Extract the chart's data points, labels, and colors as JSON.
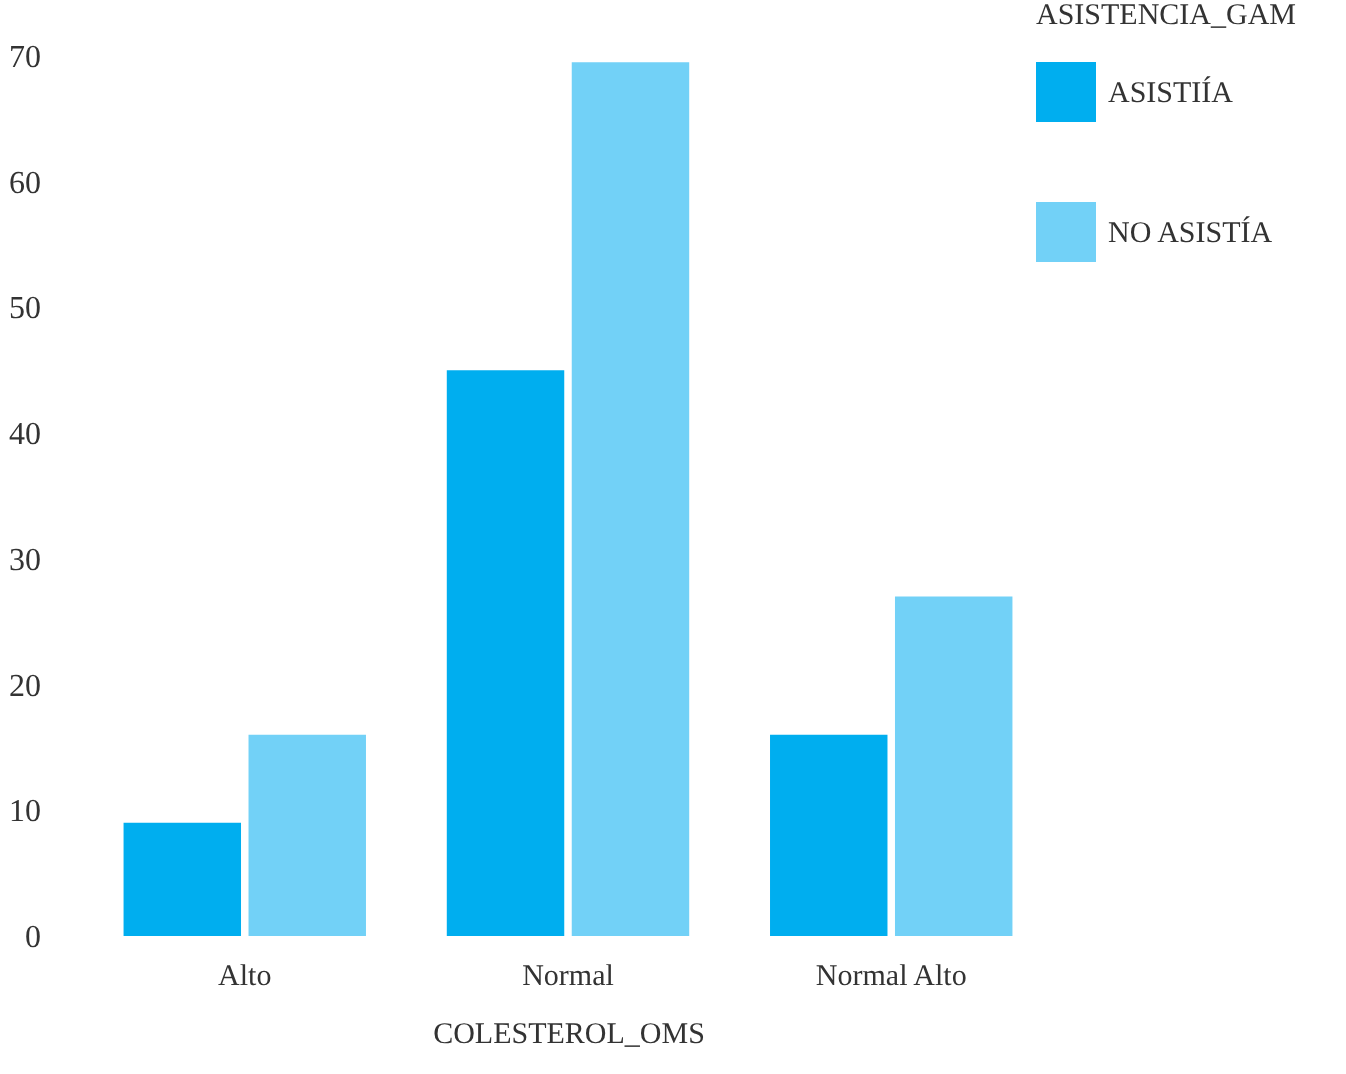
{
  "chart_data": {
    "type": "bar",
    "xlabel": "COLESTEROL_OMS",
    "legend_title": "ASISTENCIA_GAM",
    "categories": [
      "Alto",
      "Normal",
      "Normal Alto"
    ],
    "series": [
      {
        "name": "ASISTIÍA",
        "color": "#00aeef",
        "values": [
          9,
          45,
          16
        ]
      },
      {
        "name": "NO ASISTÍA",
        "color": "#72d1f7",
        "values": [
          16,
          69.5,
          27
        ]
      }
    ],
    "ylim": [
      0,
      70
    ],
    "yticks": [
      0,
      10,
      20,
      30,
      40,
      50,
      60,
      70
    ],
    "grid": false,
    "legend": "top right"
  }
}
